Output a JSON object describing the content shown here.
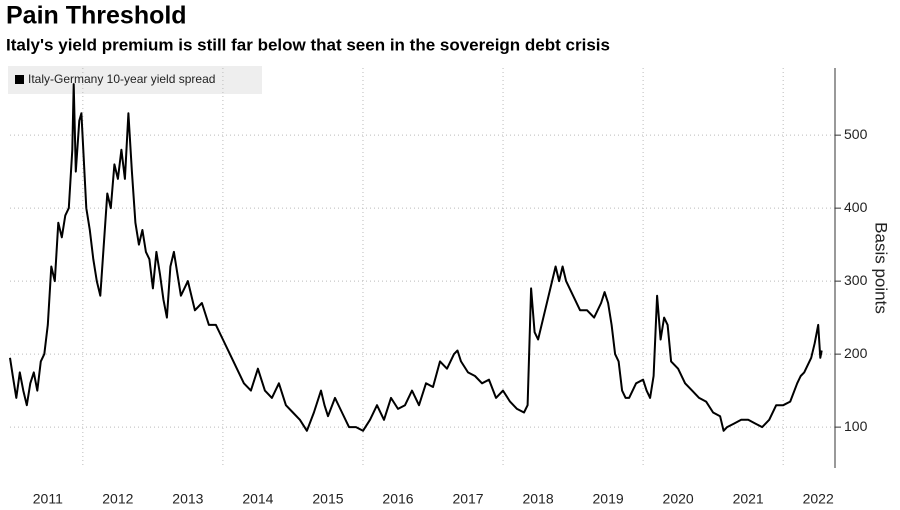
{
  "chart_data": {
    "type": "line",
    "title": "Pain Threshold",
    "subtitle": "Italy's yield premium is still far below that seen in the sovereign debt crisis",
    "y_label": "Basis points",
    "legend_position": "top-left",
    "grid": true,
    "xlim": [
      2010.96,
      2022.74
    ],
    "xticks": [
      {
        "value": 2011.5,
        "label": "2011"
      },
      {
        "value": 2012.5,
        "label": "2012"
      },
      {
        "value": 2013.5,
        "label": "2013"
      },
      {
        "value": 2014.5,
        "label": "2014"
      },
      {
        "value": 2015.5,
        "label": "2015"
      },
      {
        "value": 2016.5,
        "label": "2016"
      },
      {
        "value": 2017.5,
        "label": "2017"
      },
      {
        "value": 2018.5,
        "label": "2018"
      },
      {
        "value": 2019.5,
        "label": "2019"
      },
      {
        "value": 2020.5,
        "label": "2020"
      },
      {
        "value": 2021.5,
        "label": "2021"
      },
      {
        "value": 2022.5,
        "label": "2022"
      }
    ],
    "xgrid": [
      2012,
      2014,
      2016,
      2018,
      2020,
      2022
    ],
    "ylim": [
      44,
      592
    ],
    "yticks": [
      100,
      200,
      300,
      400,
      500
    ],
    "x": [
      2010.96,
      2011.0,
      2011.05,
      2011.1,
      2011.15,
      2011.2,
      2011.25,
      2011.3,
      2011.35,
      2011.4,
      2011.45,
      2011.5,
      2011.55,
      2011.6,
      2011.65,
      2011.7,
      2011.75,
      2011.8,
      2011.85,
      2011.87,
      2011.9,
      2011.95,
      2011.98,
      2012.05,
      2012.1,
      2012.15,
      2012.2,
      2012.25,
      2012.3,
      2012.35,
      2012.4,
      2012.45,
      2012.5,
      2012.55,
      2012.6,
      2012.65,
      2012.7,
      2012.75,
      2012.8,
      2012.85,
      2012.9,
      2012.95,
      2013.0,
      2013.05,
      2013.1,
      2013.15,
      2013.2,
      2013.25,
      2013.3,
      2013.4,
      2013.5,
      2013.6,
      2013.7,
      2013.8,
      2013.9,
      2014.0,
      2014.1,
      2014.2,
      2014.3,
      2014.4,
      2014.5,
      2014.6,
      2014.7,
      2014.8,
      2014.9,
      2015.0,
      2015.1,
      2015.2,
      2015.3,
      2015.4,
      2015.45,
      2015.5,
      2015.6,
      2015.7,
      2015.8,
      2015.9,
      2016.0,
      2016.1,
      2016.2,
      2016.3,
      2016.4,
      2016.5,
      2016.6,
      2016.7,
      2016.8,
      2016.9,
      2017.0,
      2017.1,
      2017.2,
      2017.3,
      2017.35,
      2017.4,
      2017.5,
      2017.6,
      2017.7,
      2017.8,
      2017.9,
      2018.0,
      2018.1,
      2018.2,
      2018.3,
      2018.35,
      2018.4,
      2018.45,
      2018.5,
      2018.6,
      2018.7,
      2018.75,
      2018.8,
      2018.85,
      2018.9,
      2019.0,
      2019.1,
      2019.2,
      2019.3,
      2019.4,
      2019.45,
      2019.5,
      2019.55,
      2019.6,
      2019.65,
      2019.7,
      2019.75,
      2019.8,
      2019.9,
      2020.0,
      2020.05,
      2020.1,
      2020.15,
      2020.2,
      2020.25,
      2020.3,
      2020.35,
      2020.4,
      2020.5,
      2020.6,
      2020.7,
      2020.8,
      2020.9,
      2021.0,
      2021.1,
      2021.15,
      2021.2,
      2021.3,
      2021.4,
      2021.5,
      2021.6,
      2021.7,
      2021.8,
      2021.9,
      2022.0,
      2022.1,
      2022.2,
      2022.25,
      2022.3,
      2022.4,
      2022.45,
      2022.5,
      2022.53,
      2022.55
    ],
    "series": [
      {
        "name": "Italy-Germany 10-year yield spread",
        "color": "#000000",
        "values": [
          195,
          170,
          140,
          175,
          150,
          130,
          160,
          175,
          150,
          190,
          200,
          240,
          320,
          300,
          380,
          360,
          390,
          400,
          480,
          570,
          450,
          520,
          530,
          400,
          370,
          330,
          300,
          280,
          350,
          420,
          400,
          460,
          440,
          480,
          440,
          530,
          450,
          380,
          350,
          370,
          340,
          330,
          290,
          340,
          310,
          275,
          250,
          320,
          340,
          280,
          300,
          260,
          270,
          240,
          240,
          220,
          200,
          180,
          160,
          150,
          180,
          150,
          140,
          160,
          130,
          120,
          110,
          95,
          120,
          150,
          130,
          115,
          140,
          120,
          100,
          100,
          95,
          110,
          130,
          110,
          140,
          125,
          130,
          150,
          130,
          160,
          155,
          190,
          180,
          200,
          205,
          190,
          175,
          170,
          160,
          165,
          140,
          150,
          135,
          125,
          120,
          130,
          290,
          230,
          220,
          260,
          300,
          320,
          300,
          320,
          300,
          280,
          260,
          260,
          250,
          270,
          285,
          270,
          240,
          200,
          190,
          150,
          140,
          140,
          160,
          165,
          150,
          140,
          170,
          280,
          220,
          250,
          240,
          190,
          180,
          160,
          150,
          140,
          135,
          120,
          115,
          95,
          100,
          105,
          110,
          110,
          105,
          100,
          110,
          130,
          130,
          135,
          160,
          170,
          175,
          195,
          215,
          240,
          195,
          205
        ]
      }
    ]
  }
}
